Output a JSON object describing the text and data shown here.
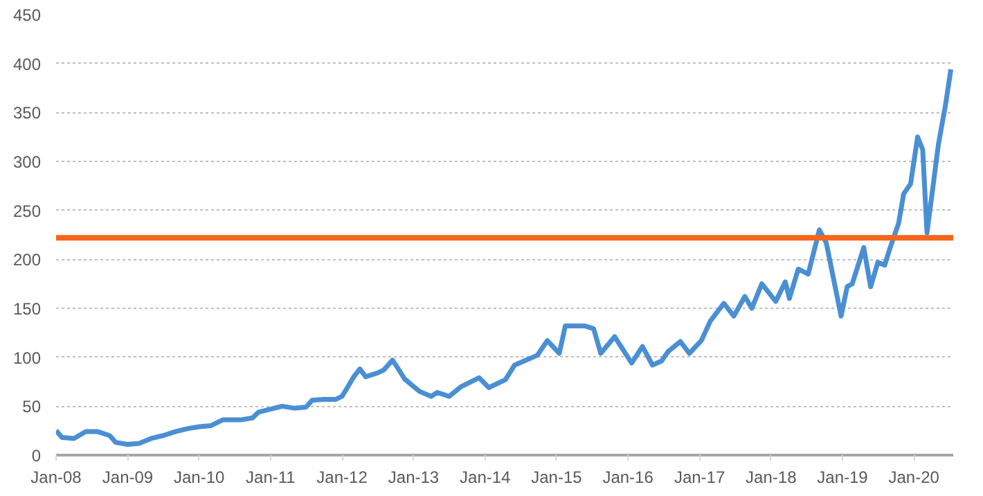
{
  "chart_data": {
    "type": "line",
    "x": [
      "2008-01-01",
      "2008-02-01",
      "2008-04-01",
      "2008-06-01",
      "2008-08-01",
      "2008-10-01",
      "2008-11-01",
      "2009-01-01",
      "2009-03-01",
      "2009-05-01",
      "2009-07-01",
      "2009-09-01",
      "2009-11-01",
      "2010-01-01",
      "2010-03-01",
      "2010-05-01",
      "2010-08-01",
      "2010-10-01",
      "2010-11-01",
      "2011-01-01",
      "2011-03-01",
      "2011-05-01",
      "2011-07-01",
      "2011-08-01",
      "2011-10-01",
      "2011-12-01",
      "2012-01-01",
      "2012-03-01",
      "2012-04-01",
      "2012-05-01",
      "2012-07-01",
      "2012-08-01",
      "2012-09-15",
      "2012-10-15",
      "2012-11-15",
      "2013-01-01",
      "2013-02-01",
      "2013-04-01",
      "2013-05-01",
      "2013-07-01",
      "2013-09-01",
      "2013-10-01",
      "2013-12-01",
      "2014-01-20",
      "2014-04-15",
      "2014-06-01",
      "2014-09-25",
      "2014-11-15",
      "2015-01-15",
      "2015-02-15",
      "2015-05-25",
      "2015-07-10",
      "2015-08-15",
      "2015-10-25",
      "2016-01-20",
      "2016-03-15",
      "2016-05-05",
      "2016-06-20",
      "2016-07-25",
      "2016-09-25",
      "2016-11-10",
      "2017-01-10",
      "2017-02-25",
      "2017-05-05",
      "2017-06-25",
      "2017-08-20",
      "2017-09-25",
      "2017-11-15",
      "2018-01-25",
      "2018-03-15",
      "2018-04-05",
      "2018-05-20",
      "2018-07-10",
      "2018-09-05",
      "2018-10-10",
      "2018-12-25",
      "2019-01-25",
      "2019-02-20",
      "2019-04-20",
      "2019-05-25",
      "2019-07-01",
      "2019-08-05",
      "2019-08-28",
      "2019-10-15",
      "2019-11-10",
      "2019-12-15",
      "2020-01-20",
      "2020-02-15",
      "2020-03-08",
      "2020-05-05",
      "2020-06-10",
      "2020-07-08"
    ],
    "series": [
      {
        "color": "#4a8fd4",
        "values": [
          25,
          18,
          17,
          24,
          24,
          20,
          13,
          11,
          12,
          17,
          20,
          24,
          27,
          29,
          30,
          36,
          36,
          38,
          44,
          47,
          50,
          48,
          49,
          56,
          57,
          57,
          60,
          80,
          88,
          80,
          84,
          87,
          97,
          88,
          78,
          70,
          65,
          60,
          64,
          60,
          70,
          73,
          79,
          69,
          77,
          92,
          102,
          117,
          104,
          132,
          132,
          129,
          104,
          121,
          94,
          111,
          92,
          96,
          106,
          116,
          104,
          117,
          137,
          155,
          142,
          162,
          150,
          175,
          157,
          177,
          160,
          190,
          185,
          230,
          217,
          142,
          172,
          175,
          212,
          172,
          197,
          194,
          209,
          237,
          267,
          277,
          325,
          312,
          227,
          317,
          357,
          394
        ]
      }
    ],
    "xlim": [
      "2008-01-01",
      "2020-07-20"
    ],
    "ylim": [
      0,
      450
    ],
    "yticks": [
      0,
      50,
      100,
      150,
      200,
      250,
      300,
      350,
      400,
      450
    ],
    "xticks": [
      {
        "value": "2008-01-01",
        "label": "Jan-08"
      },
      {
        "value": "2009-01-01",
        "label": "Jan-09"
      },
      {
        "value": "2010-01-01",
        "label": "Jan-10"
      },
      {
        "value": "2011-01-01",
        "label": "Jan-11"
      },
      {
        "value": "2012-01-01",
        "label": "Jan-12"
      },
      {
        "value": "2013-01-01",
        "label": "Jan-13"
      },
      {
        "value": "2014-01-01",
        "label": "Jan-14"
      },
      {
        "value": "2015-01-01",
        "label": "Jan-15"
      },
      {
        "value": "2016-01-01",
        "label": "Jan-16"
      },
      {
        "value": "2017-01-01",
        "label": "Jan-17"
      },
      {
        "value": "2018-01-01",
        "label": "Jan-18"
      },
      {
        "value": "2019-01-01",
        "label": "Jan-19"
      },
      {
        "value": "2020-01-01",
        "label": "Jan-20"
      }
    ],
    "ref_lines": [
      {
        "axis": "y",
        "value": 222,
        "color": "#f4661b"
      }
    ],
    "grid": "y",
    "marker": "none",
    "line_style": "solid"
  }
}
